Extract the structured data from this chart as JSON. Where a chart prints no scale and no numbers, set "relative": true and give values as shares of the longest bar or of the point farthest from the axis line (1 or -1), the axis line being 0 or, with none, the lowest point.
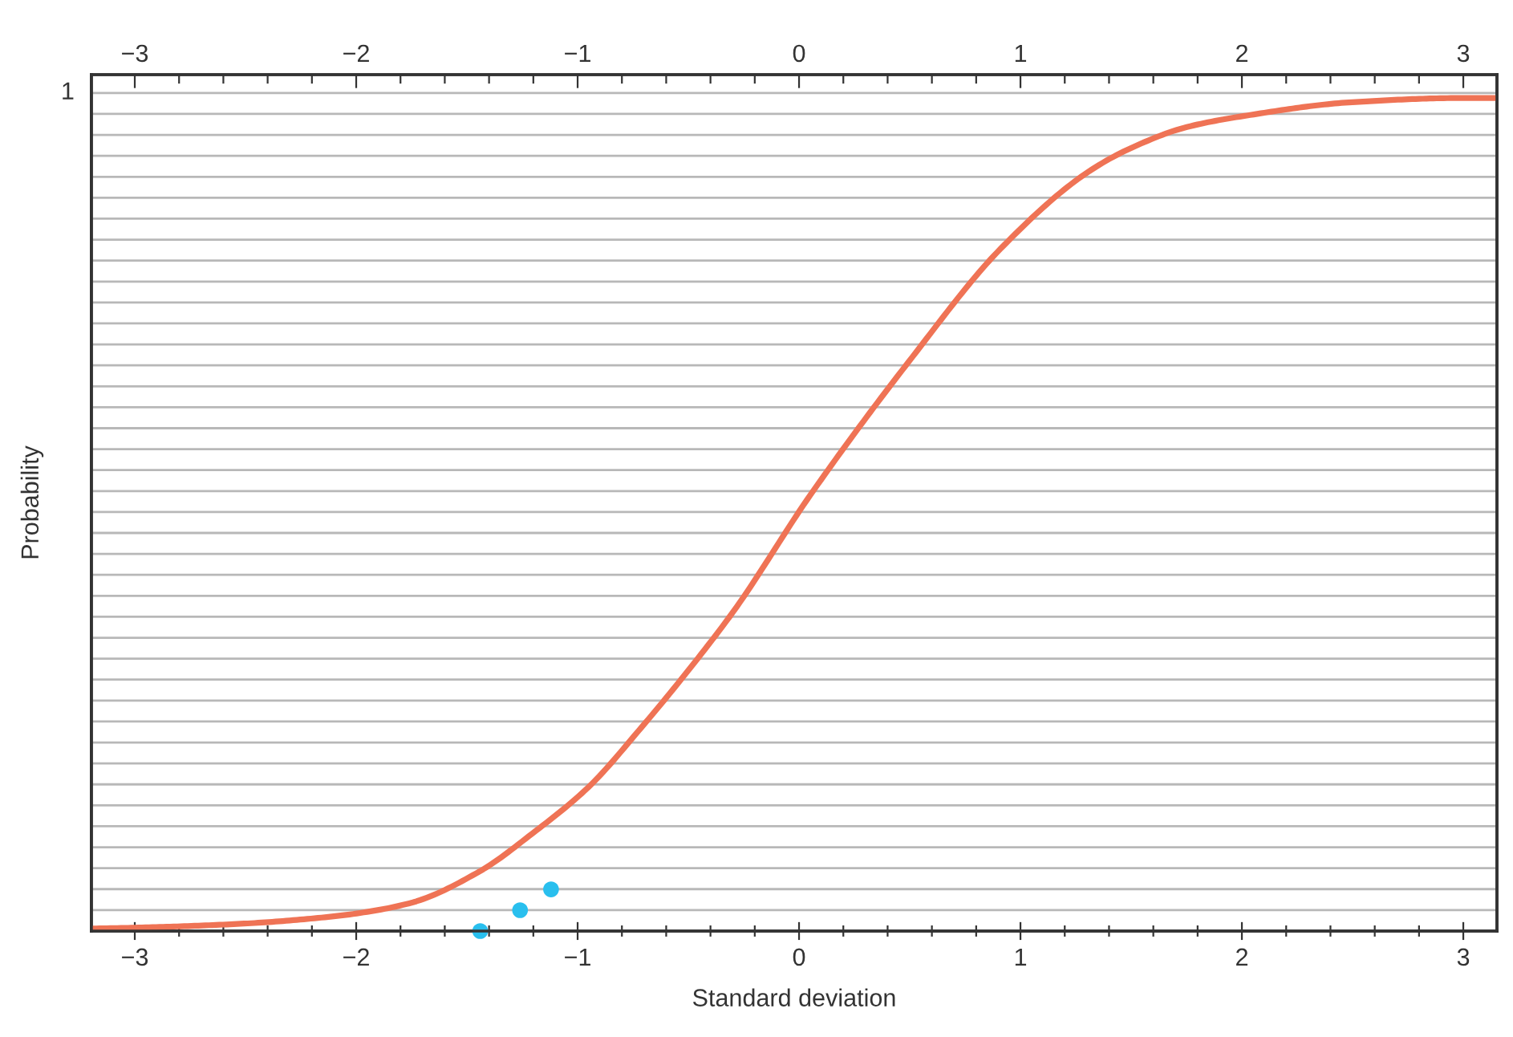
{
  "chart_data": {
    "type": "line",
    "xlabel": "Standard deviation",
    "ylabel": "Probability",
    "relative": true,
    "annotations": [
      "1"
    ],
    "xlim": [
      -3.196,
      3.152
    ],
    "xticks": [
      {
        "value": -3,
        "label": "−3"
      },
      {
        "value": -2.8,
        "label": null
      },
      {
        "value": -2.6,
        "label": null
      },
      {
        "value": -2.4,
        "label": null
      },
      {
        "value": -2.2,
        "label": null
      },
      {
        "value": -2,
        "label": "−2"
      },
      {
        "value": -1.8,
        "label": null
      },
      {
        "value": -1.6,
        "label": null
      },
      {
        "value": -1.4,
        "label": null
      },
      {
        "value": -1.2,
        "label": null
      },
      {
        "value": -1,
        "label": "−1"
      },
      {
        "value": -0.8,
        "label": null
      },
      {
        "value": -0.6,
        "label": null
      },
      {
        "value": -0.4,
        "label": null
      },
      {
        "value": -0.2,
        "label": null
      },
      0,
      {
        "value": 0.2,
        "label": null
      },
      {
        "value": 0.4,
        "label": null
      },
      {
        "value": 0.6,
        "label": null
      },
      {
        "value": 0.8,
        "label": null
      },
      1,
      {
        "value": 1.2,
        "label": null
      },
      {
        "value": 1.4,
        "label": null
      },
      {
        "value": 1.6,
        "label": null
      },
      {
        "value": 1.8,
        "label": null
      },
      2,
      {
        "value": 2.2,
        "label": null
      },
      {
        "value": 2.4,
        "label": null
      },
      {
        "value": 2.6,
        "label": null
      },
      {
        "value": 2.8,
        "label": null
      },
      3
    ],
    "x2lim": [
      -3.196,
      3.152
    ],
    "x2ticks": [
      {
        "value": -3,
        "label": "−3"
      },
      {
        "value": -2.8,
        "label": null
      },
      {
        "value": -2.6,
        "label": null
      },
      {
        "value": -2.4,
        "label": null
      },
      {
        "value": -2.2,
        "label": null
      },
      {
        "value": -2,
        "label": "−2"
      },
      {
        "value": -1.8,
        "label": null
      },
      {
        "value": -1.6,
        "label": null
      },
      {
        "value": -1.4,
        "label": null
      },
      {
        "value": -1.2,
        "label": null
      },
      {
        "value": -1,
        "label": "−1"
      },
      {
        "value": -0.8,
        "label": null
      },
      {
        "value": -0.6,
        "label": null
      },
      {
        "value": -0.4,
        "label": null
      },
      {
        "value": -0.2,
        "label": null
      },
      0,
      {
        "value": 0.2,
        "label": null
      },
      {
        "value": 0.4,
        "label": null
      },
      {
        "value": 0.6,
        "label": null
      },
      {
        "value": 0.8,
        "label": null
      },
      1,
      {
        "value": 1.2,
        "label": null
      },
      {
        "value": 1.4,
        "label": null
      },
      {
        "value": 1.6,
        "label": null
      },
      {
        "value": 1.8,
        "label": null
      },
      2,
      {
        "value": 2.2,
        "label": null
      },
      {
        "value": 2.4,
        "label": null
      },
      {
        "value": 2.6,
        "label": null
      },
      {
        "value": 2.8,
        "label": null
      },
      3
    ],
    "grid": "y",
    "series": [
      {
        "color": "#ef7355",
        "line_style": "solid",
        "marker": "none",
        "x": [
          -3.19,
          -3,
          -2.5,
          -2.16,
          -2,
          -1.75,
          -1.44,
          -1.2,
          -0.95,
          -0.71,
          -0.47,
          -0.29,
          0.05,
          0.5,
          0.91,
          1.31,
          1.5,
          1.75,
          2,
          2.5,
          3,
          3.15
        ],
        "values": [
          0.003,
          0.004,
          0.009,
          0.016,
          0.021,
          0.034,
          0.072,
          0.118,
          0.173,
          0.245,
          0.323,
          0.386,
          0.523,
          0.685,
          0.819,
          0.912,
          0.94,
          0.965,
          0.978,
          0.995,
          1,
          1
        ]
      },
      {
        "type": "scatter",
        "color": "#29bfee",
        "marker": "circle",
        "x": [
          -1.44,
          -1.26,
          -1.12
        ],
        "values": [
          0,
          0.025,
          0.05
        ]
      }
    ]
  }
}
